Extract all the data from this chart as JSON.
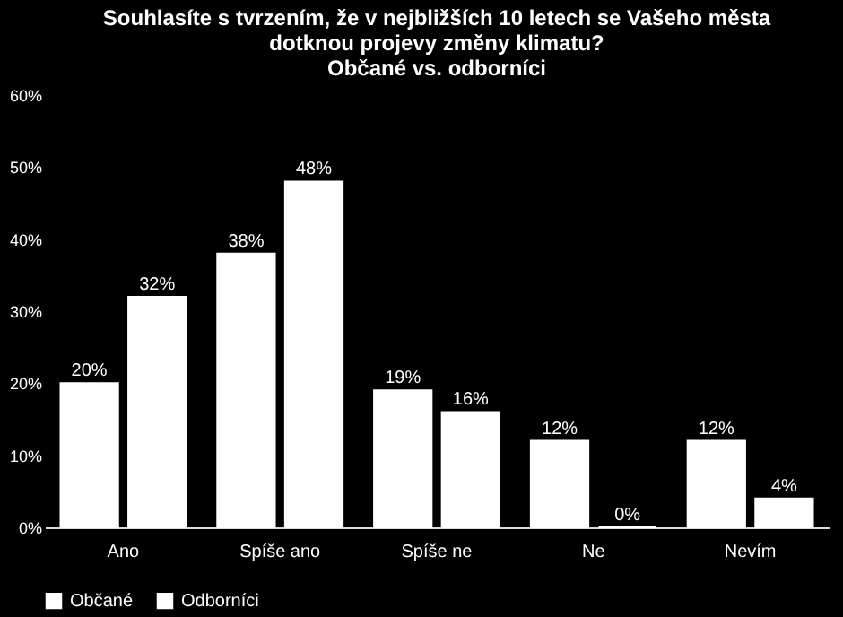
{
  "chart_data": {
    "type": "bar",
    "title": [
      "Souhlasíte s tvrzením, že v nejbližších 10 letech se Vašeho města",
      "dotknou projevy změny klimatu?",
      "Občané vs. odborníci"
    ],
    "categories": [
      "Ano",
      "Spíše ano",
      "Spíše ne",
      "Ne",
      "Nevím"
    ],
    "series": [
      {
        "name": "Občané",
        "color": "#ffffff",
        "values": [
          20,
          38,
          19,
          12,
          12
        ],
        "value_labels": [
          "20%",
          "38%",
          "19%",
          "12%",
          "12%"
        ]
      },
      {
        "name": "Odborníci",
        "color": "#ffffff",
        "values": [
          32,
          48,
          16,
          0,
          4
        ],
        "value_labels": [
          "32%",
          "48%",
          "16%",
          "0%",
          "4%"
        ]
      }
    ],
    "ylim": [
      0,
      60
    ],
    "yticks": [
      {
        "value": 0,
        "label": "0%"
      },
      {
        "value": 10,
        "label": "10%"
      },
      {
        "value": 20,
        "label": "20%"
      },
      {
        "value": 30,
        "label": "30%"
      },
      {
        "value": 40,
        "label": "40%"
      },
      {
        "value": 50,
        "label": "50%"
      },
      {
        "value": 60,
        "label": "60%"
      }
    ],
    "grid": false,
    "legend": "bottom"
  }
}
